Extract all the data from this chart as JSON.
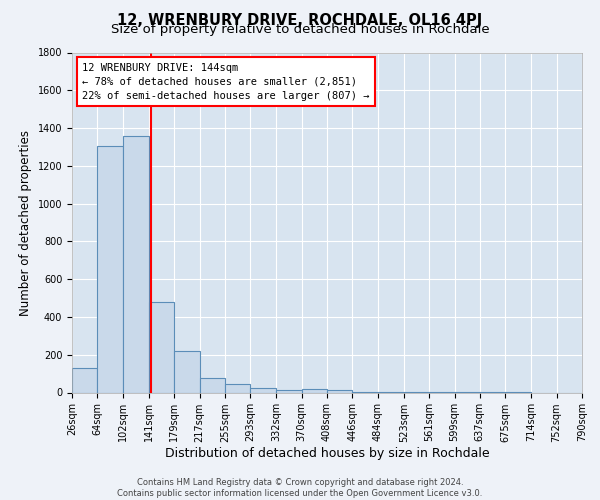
{
  "title": "12, WRENBURY DRIVE, ROCHDALE, OL16 4PJ",
  "subtitle": "Size of property relative to detached houses in Rochdale",
  "xlabel": "Distribution of detached houses by size in Rochdale",
  "ylabel": "Number of detached properties",
  "footer_line1": "Contains HM Land Registry data © Crown copyright and database right 2024.",
  "footer_line2": "Contains public sector information licensed under the Open Government Licence v3.0.",
  "bar_edges": [
    26,
    64,
    102,
    141,
    179,
    217,
    255,
    293,
    332,
    370,
    408,
    446,
    484,
    523,
    561,
    599,
    637,
    675,
    714,
    752,
    790
  ],
  "bar_heights": [
    130,
    1305,
    1360,
    480,
    220,
    75,
    45,
    25,
    15,
    20,
    15,
    5,
    5,
    2,
    2,
    1,
    1,
    1,
    0,
    0
  ],
  "bar_color": "#c9d9ea",
  "bar_edge_color": "#5b8db8",
  "bar_linewidth": 0.8,
  "vline_x": 144,
  "vline_color": "red",
  "vline_linewidth": 1.5,
  "ylim": [
    0,
    1800
  ],
  "yticks": [
    0,
    200,
    400,
    600,
    800,
    1000,
    1200,
    1400,
    1600,
    1800
  ],
  "annotation_box_text": "12 WRENBURY DRIVE: 144sqm\n← 78% of detached houses are smaller (2,851)\n22% of semi-detached houses are larger (807) →",
  "bg_color": "#eef2f8",
  "plot_bg_color": "#d8e4f0",
  "grid_color": "white",
  "title_fontsize": 10.5,
  "subtitle_fontsize": 9.5,
  "ylabel_fontsize": 8.5,
  "xlabel_fontsize": 9,
  "tick_fontsize": 7,
  "annotation_fontsize": 7.5,
  "footer_fontsize": 6
}
